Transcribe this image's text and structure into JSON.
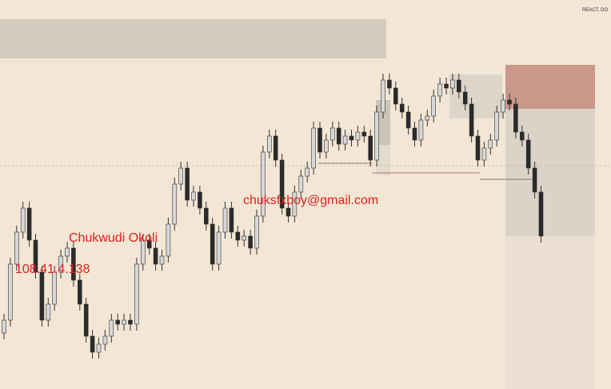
{
  "chart_data": {
    "type": "candlestick",
    "watermark_name": "Chukwudi Okoli",
    "watermark_ip": "108.41.4.138",
    "watermark_email": "chuksfxboy@gmail.com",
    "corner_text": "REACT, DO",
    "up_color": "#d8d8d8",
    "down_color": "#2a2a2a",
    "ylim": [
      0,
      486
    ],
    "open": [
      70,
      86,
      156,
      196,
      226,
      186,
      146,
      86,
      106,
      146,
      166,
      176,
      136,
      106,
      66,
      46,
      56,
      66,
      86,
      81,
      86,
      81,
      156,
      186,
      176,
      156,
      166,
      206,
      256,
      276,
      236,
      246,
      226,
      206,
      156,
      196,
      226,
      196,
      186,
      191,
      176,
      216,
      296,
      316,
      286,
      226,
      216,
      246,
      266,
      276,
      326,
      296,
      311,
      326,
      306,
      316,
      311,
      321,
      316,
      286,
      346,
      386,
      376,
      356,
      346,
      326,
      311,
      336,
      341,
      366,
      381,
      376,
      386,
      371,
      356,
      316,
      286,
      301,
      311,
      346,
      361,
      356,
      321,
      311,
      276,
      246
    ],
    "high": [
      94,
      164,
      204,
      234,
      234,
      194,
      154,
      114,
      154,
      174,
      184,
      184,
      144,
      114,
      74,
      64,
      74,
      94,
      94,
      94,
      94,
      164,
      194,
      194,
      184,
      174,
      214,
      264,
      284,
      284,
      254,
      254,
      234,
      214,
      204,
      234,
      234,
      204,
      199,
      199,
      224,
      304,
      324,
      324,
      294,
      234,
      254,
      274,
      284,
      334,
      334,
      319,
      334,
      334,
      324,
      324,
      329,
      329,
      324,
      354,
      394,
      394,
      384,
      364,
      354,
      334,
      344,
      349,
      374,
      389,
      389,
      394,
      394,
      379,
      364,
      324,
      309,
      319,
      354,
      369,
      369,
      364,
      329,
      319,
      284,
      254
    ],
    "low": [
      62,
      78,
      148,
      188,
      178,
      138,
      78,
      78,
      98,
      138,
      158,
      128,
      98,
      58,
      38,
      38,
      48,
      58,
      73,
      73,
      73,
      73,
      148,
      168,
      148,
      148,
      158,
      198,
      248,
      228,
      228,
      218,
      198,
      148,
      148,
      188,
      188,
      178,
      178,
      168,
      168,
      208,
      288,
      278,
      218,
      208,
      208,
      238,
      258,
      268,
      288,
      288,
      303,
      298,
      298,
      303,
      303,
      308,
      278,
      278,
      338,
      368,
      348,
      338,
      318,
      303,
      303,
      328,
      333,
      358,
      368,
      368,
      363,
      348,
      308,
      278,
      278,
      293,
      303,
      338,
      348,
      313,
      303,
      268,
      238,
      183
    ],
    "close": [
      86,
      156,
      196,
      226,
      186,
      146,
      86,
      106,
      146,
      166,
      176,
      136,
      106,
      66,
      46,
      56,
      66,
      86,
      81,
      86,
      81,
      156,
      186,
      176,
      156,
      166,
      206,
      256,
      276,
      236,
      246,
      226,
      206,
      156,
      196,
      226,
      196,
      186,
      191,
      176,
      216,
      296,
      316,
      286,
      226,
      216,
      246,
      266,
      276,
      326,
      296,
      311,
      326,
      306,
      316,
      311,
      321,
      316,
      286,
      346,
      386,
      376,
      356,
      346,
      326,
      311,
      336,
      341,
      366,
      381,
      376,
      386,
      371,
      356,
      316,
      286,
      301,
      311,
      346,
      361,
      356,
      321,
      311,
      276,
      246,
      191
    ]
  }
}
